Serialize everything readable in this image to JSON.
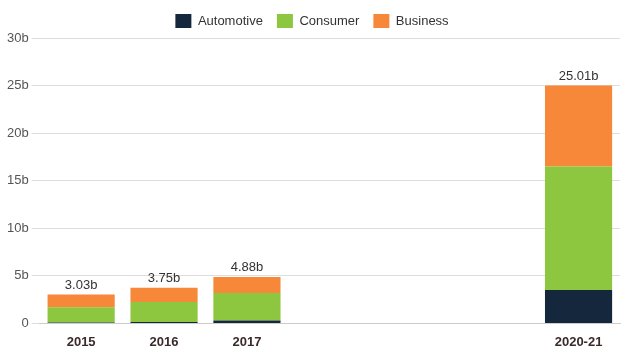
{
  "chart_data": {
    "type": "bar",
    "categories": [
      "2015",
      "2016",
      "2017",
      null,
      null,
      null,
      "2020-21"
    ],
    "series": [
      {
        "name": "Automotive",
        "color": "#14273d",
        "values": [
          0.1,
          0.15,
          0.3,
          null,
          null,
          null,
          3.5
        ]
      },
      {
        "name": "Consumer",
        "color": "#8dc63f",
        "values": [
          1.6,
          2.1,
          2.9,
          null,
          null,
          null,
          13.0
        ]
      },
      {
        "name": "Business",
        "color": "#f7883a",
        "values": [
          1.33,
          1.5,
          1.68,
          null,
          null,
          null,
          8.51
        ]
      }
    ],
    "totals": [
      3.03,
      3.75,
      4.88,
      null,
      null,
      null,
      25.01
    ],
    "total_labels": [
      "3.03b",
      "3.75b",
      "4.88b",
      null,
      null,
      null,
      "25.01b"
    ],
    "ylim": [
      0,
      30
    ],
    "yticks": [
      0,
      {
        "value": 5,
        "label": "5b"
      },
      {
        "value": 10,
        "label": "10b"
      },
      {
        "value": 15,
        "label": "15b"
      },
      {
        "value": 20,
        "label": "20b"
      },
      {
        "value": 25,
        "label": "25b"
      },
      {
        "value": 30,
        "label": "30b"
      }
    ],
    "stacked": true,
    "grid": true,
    "legend": "top"
  }
}
